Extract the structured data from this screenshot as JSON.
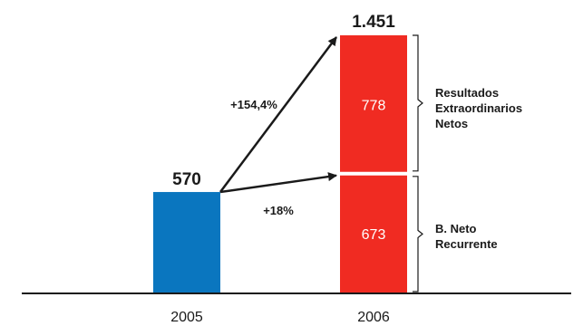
{
  "chart_data": {
    "type": "bar",
    "categories": [
      "2005",
      "2006"
    ],
    "series": [
      {
        "name": "B. Neto Recurrente",
        "values": [
          570,
          673
        ]
      },
      {
        "name": "Resultados Extraordinarios Netos",
        "values": [
          0,
          778
        ]
      }
    ],
    "totals": [
      {
        "category": "2005",
        "label": "570",
        "value": 570
      },
      {
        "category": "2006",
        "label": "1.451",
        "value": 1451
      }
    ],
    "segment_labels": {
      "recurrent_2006": "673",
      "extraordinary_2006": "778"
    },
    "annotations": [
      {
        "text": "+154,4%",
        "from": "2005",
        "to": "2006 total"
      },
      {
        "text": "+18%",
        "from": "2005",
        "to": "2006 recurrent"
      }
    ],
    "bracket_labels": {
      "extraordinary": [
        "Resultados",
        "Extraordinarios",
        "Netos"
      ],
      "recurrent": [
        "B. Neto",
        "Recurrente"
      ]
    },
    "colors": {
      "bar_2005": "#0a76bf",
      "bar_2006": "#f02b22",
      "arrow": "#1a1a1a",
      "axis": "#1a1a1a"
    },
    "ylim": [
      0,
      1451
    ]
  }
}
